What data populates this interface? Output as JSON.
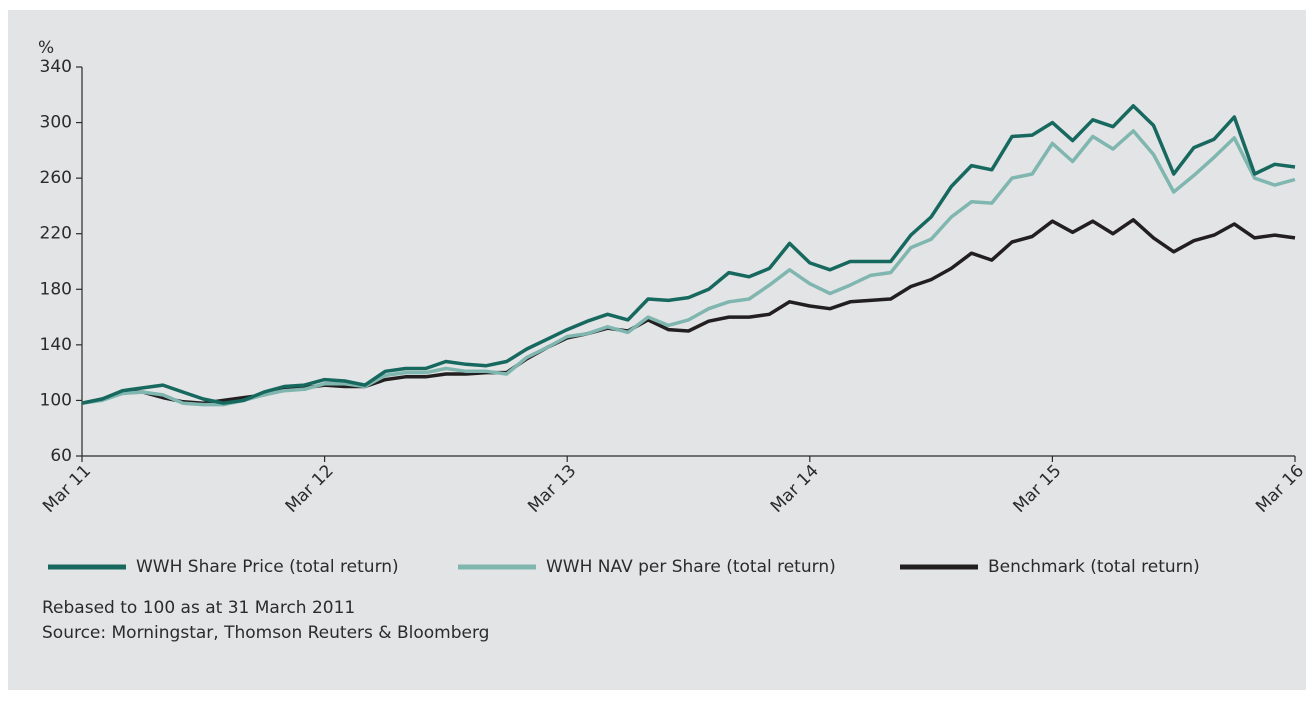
{
  "chart_data": {
    "type": "line",
    "y_label": "%",
    "categories": [
      "Mar 11",
      null,
      null,
      null,
      null,
      null,
      null,
      null,
      null,
      null,
      null,
      null,
      "Mar 12",
      null,
      null,
      null,
      null,
      null,
      null,
      null,
      null,
      null,
      null,
      null,
      "Mar 13",
      null,
      null,
      null,
      null,
      null,
      null,
      null,
      null,
      null,
      null,
      null,
      "Mar 14",
      null,
      null,
      null,
      null,
      null,
      null,
      null,
      null,
      null,
      null,
      null,
      "Mar 15",
      null,
      null,
      null,
      null,
      null,
      null,
      null,
      null,
      null,
      null,
      null,
      "Mar 16"
    ],
    "series": [
      {
        "name": "WWH Share Price (total return)",
        "color": "#17695f",
        "values": [
          98,
          101,
          107,
          109,
          111,
          106,
          101,
          98,
          100,
          106,
          110,
          111,
          115,
          114,
          111,
          121,
          123,
          123,
          128,
          126,
          125,
          128,
          137,
          144,
          151,
          157,
          162,
          158,
          173,
          172,
          174,
          180,
          192,
          189,
          195,
          213,
          199,
          194,
          200,
          200,
          200,
          219,
          232,
          254,
          269,
          266,
          290,
          291,
          300,
          287,
          302,
          297,
          312,
          298,
          263,
          282,
          288,
          304,
          263,
          270,
          268
        ]
      },
      {
        "name": "WWH NAV per Share (total return)",
        "color": "#80b6b0",
        "values": [
          98,
          100,
          105,
          106,
          104,
          98,
          97,
          97,
          100,
          104,
          107,
          108,
          112,
          112,
          110,
          118,
          120,
          120,
          123,
          121,
          121,
          119,
          131,
          138,
          146,
          148,
          153,
          149,
          160,
          154,
          158,
          166,
          171,
          173,
          183,
          194,
          184,
          177,
          183,
          190,
          192,
          210,
          216,
          232,
          243,
          242,
          260,
          263,
          285,
          272,
          290,
          281,
          294,
          277,
          250,
          262,
          275,
          289,
          260,
          255,
          259
        ]
      },
      {
        "name": "Benchmark (total return)",
        "color": "#231f20",
        "values": [
          98,
          101,
          106,
          106,
          102,
          99,
          98,
          100,
          102,
          104,
          108,
          109,
          111,
          110,
          110,
          115,
          117,
          117,
          119,
          119,
          120,
          120,
          130,
          138,
          145,
          148,
          152,
          150,
          158,
          151,
          150,
          157,
          160,
          160,
          162,
          171,
          168,
          166,
          171,
          172,
          173,
          182,
          187,
          195,
          206,
          201,
          214,
          218,
          229,
          221,
          229,
          220,
          230,
          217,
          207,
          215,
          219,
          227,
          217,
          219,
          217
        ]
      }
    ],
    "ylim": [
      60,
      340
    ],
    "yticks": [
      60,
      100,
      140,
      180,
      220,
      260,
      300,
      340
    ],
    "notes": [
      "Rebased to 100 as at 31 March 2011",
      "Source: Morningstar, Thomson Reuters & Bloomberg"
    ]
  }
}
